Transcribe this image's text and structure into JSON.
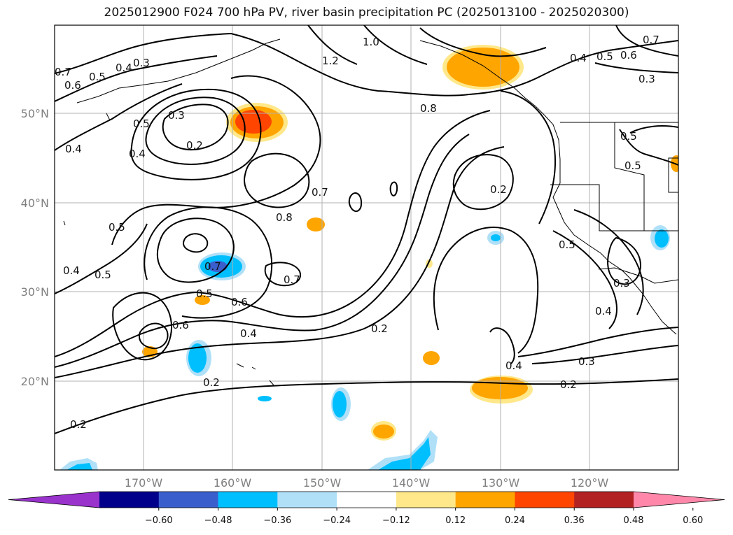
{
  "title": "2025012900 F024 700 hPa PV, river basin precipitation PC (2025013100 - 2025020300)",
  "lat_labels": [
    "50°N",
    "40°N",
    "30°N",
    "20°N"
  ],
  "lon_labels": [
    "170°W",
    "160°W",
    "150°W",
    "140°W",
    "130°W",
    "120°W"
  ],
  "contour_labels": [
    "0.3",
    "0.4",
    "0.5",
    "0.6",
    "0.7",
    "0.2",
    "0.3",
    "0.5",
    "0.4",
    "0.4",
    "1.2",
    "1.0",
    "0.8",
    "0.7",
    "0.8",
    "0.7",
    "0.5",
    "0.4",
    "0.5",
    "0.5",
    "0.6",
    "0.7",
    "0.6",
    "0.4",
    "0.2",
    "0.2",
    "0.2",
    "0.2",
    "0.4",
    "0.3",
    "0.2",
    "0.5",
    "0.3",
    "0.4",
    "0.4",
    "0.5",
    "0.6",
    "0.3",
    "0.5",
    "0.5",
    "0.7"
  ],
  "colorbar": {
    "ticks": [
      "−0.60",
      "−0.48",
      "−0.36",
      "−0.24",
      "−0.12",
      "0.12",
      "0.24",
      "0.36",
      "0.48",
      "0.60"
    ],
    "colors": [
      "#9933cc",
      "#00008b",
      "#3a5fcd",
      "#00bfff",
      "#b0e0f8",
      "#ffffff",
      "#ffe88a",
      "#ffa500",
      "#ff4500",
      "#b22222",
      "#ff88aa"
    ]
  },
  "chart_data": {
    "type": "heatmap",
    "title": "2025012900 F024 700 hPa PV, river basin precipitation PC (2025013100 - 2025020300)",
    "x_range": [
      "180°W",
      "110°W"
    ],
    "y_range": [
      "10°N",
      "60°N"
    ],
    "contour_field": "700 hPa PV",
    "contour_levels": [
      0.2,
      0.3,
      0.4,
      0.5,
      0.6,
      0.7,
      0.8,
      1.0,
      1.2
    ],
    "shaded_field": "river basin precipitation PC",
    "shade_levels": [
      -0.6,
      -0.48,
      -0.36,
      -0.24,
      -0.12,
      0.12,
      0.24,
      0.36,
      0.48,
      0.6
    ],
    "grid": true
  }
}
